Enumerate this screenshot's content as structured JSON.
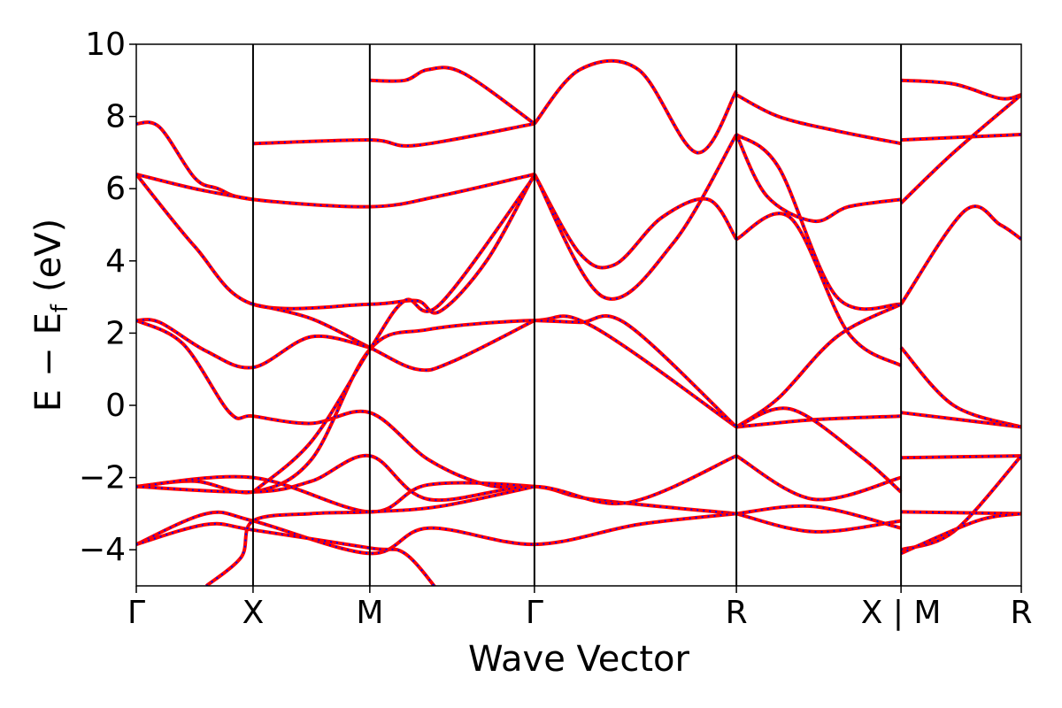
{
  "chart_data": {
    "type": "line",
    "title": "",
    "xlabel": "Wave Vector",
    "ylabel": "E − E_f (eV)",
    "ylabel_parts": {
      "lhs": "E",
      "minus": "−",
      "ef_base": "E",
      "ef_sub": "f",
      "unit": "(eV)"
    },
    "ylim": [
      -5,
      10
    ],
    "xlim": [
      0,
      7.58
    ],
    "yticks": [
      -4,
      -2,
      0,
      2,
      4,
      6,
      8,
      10
    ],
    "ytick_labels": [
      "−4",
      "−2",
      "0",
      "2",
      "4",
      "6",
      "8",
      "10"
    ],
    "kpoints": [
      {
        "label": "Γ",
        "x": 0
      },
      {
        "label": "X",
        "x": 1
      },
      {
        "label": "M",
        "x": 2
      },
      {
        "label": "Γ",
        "x": 3.41
      },
      {
        "label": "R",
        "x": 5.14
      },
      {
        "label": "X | M",
        "x": 6.55
      },
      {
        "label": "R",
        "x": 7.58
      }
    ],
    "vlines": [
      1,
      2,
      3.41,
      5.14,
      6.55
    ],
    "grid": false,
    "legend": "none",
    "colors": {
      "series_a": "#ff0000",
      "series_b": "#0000ff",
      "vline": "#000000"
    },
    "series": [
      {
        "style": "solid",
        "color": "#ff0000",
        "bands": [
          [
            [
              0,
              7.8
            ],
            [
              0.2,
              7.7
            ],
            [
              0.5,
              6.3
            ],
            [
              0.7,
              6.0
            ],
            [
              1,
              5.7
            ],
            [
              2,
              5.5
            ],
            [
              2.6,
              5.8
            ],
            [
              3.41,
              6.4
            ]
          ],
          [
            [
              0,
              6.4
            ],
            [
              0.5,
              6.0
            ],
            [
              1,
              5.7
            ]
          ],
          [
            [
              0,
              6.4
            ],
            [
              0.5,
              4.4
            ],
            [
              1,
              2.8
            ],
            [
              2,
              2.8
            ],
            [
              2.4,
              2.9
            ],
            [
              2.6,
              2.6
            ],
            [
              3.0,
              4.0
            ],
            [
              3.41,
              6.4
            ]
          ],
          [
            [
              1,
              2.8
            ],
            [
              1.5,
              2.4
            ],
            [
              2,
              1.6
            ],
            [
              2.4,
              1.0
            ],
            [
              2.7,
              1.2
            ],
            [
              3.41,
              2.35
            ]
          ],
          [
            [
              0,
              2.35
            ],
            [
              0.2,
              2.3
            ],
            [
              0.6,
              1.5
            ],
            [
              1,
              1.05
            ],
            [
              1.5,
              1.9
            ],
            [
              2,
              1.6
            ]
          ],
          [
            [
              0,
              2.35
            ],
            [
              0.4,
              1.7
            ],
            [
              0.8,
              -0.2
            ],
            [
              1,
              -0.3
            ],
            [
              1.5,
              -0.5
            ],
            [
              2,
              -0.2
            ],
            [
              2.5,
              -1.5
            ],
            [
              3.0,
              -2.2
            ],
            [
              3.41,
              -2.25
            ]
          ],
          [
            [
              0,
              -2.25
            ],
            [
              0.5,
              -2.1
            ],
            [
              1,
              -2.4
            ],
            [
              1.5,
              -1.5
            ],
            [
              2,
              1.55
            ],
            [
              2.5,
              2.1
            ],
            [
              3.41,
              2.35
            ],
            [
              3.9,
              2.2
            ],
            [
              5.14,
              -0.6
            ]
          ],
          [
            [
              3.41,
              2.35
            ],
            [
              3.8,
              2.3
            ],
            [
              4.2,
              2.25
            ],
            [
              5.14,
              -0.6
            ]
          ],
          [
            [
              0,
              -2.25
            ],
            [
              1,
              -2.0
            ],
            [
              2,
              -2.95
            ],
            [
              2.5,
              -2.2
            ],
            [
              3.41,
              -2.25
            ],
            [
              3.9,
              -2.6
            ],
            [
              5.14,
              -3.0
            ]
          ],
          [
            [
              0,
              -3.85
            ],
            [
              0.6,
              -3.0
            ],
            [
              1,
              -3.2
            ],
            [
              2,
              -4.1
            ],
            [
              2.5,
              -3.4
            ],
            [
              3.41,
              -3.85
            ],
            [
              4.3,
              -3.3
            ],
            [
              5.14,
              -3.0
            ]
          ],
          [
            [
              0,
              -3.85
            ],
            [
              0.6,
              -3.3
            ],
            [
              1,
              -3.45
            ],
            [
              2,
              -3.95
            ],
            [
              2.3,
              -4.1
            ],
            [
              2.6,
              -5.2
            ]
          ],
          [
            [
              0,
              -2.25
            ],
            [
              1,
              -2.4
            ],
            [
              1.5,
              -2.1
            ],
            [
              2,
              -1.4
            ],
            [
              2.5,
              -2.6
            ],
            [
              3.41,
              -2.25
            ],
            [
              4.2,
              -2.7
            ],
            [
              5.14,
              -1.4
            ]
          ],
          [
            [
              0.6,
              -5.0
            ],
            [
              0.9,
              -4.2
            ],
            [
              1,
              -3.2
            ],
            [
              1.5,
              -3.0
            ],
            [
              2,
              -2.95
            ],
            [
              2.6,
              -2.8
            ],
            [
              3.41,
              -2.25
            ]
          ],
          [
            [
              1,
              -2.4
            ],
            [
              1.5,
              -1.0
            ],
            [
              2,
              1.55
            ],
            [
              2.3,
              2.9
            ],
            [
              2.6,
              2.8
            ],
            [
              3.41,
              6.35
            ]
          ],
          [
            [
              2,
              9.0
            ],
            [
              2.3,
              9.0
            ],
            [
              2.5,
              9.3
            ],
            [
              2.8,
              9.2
            ],
            [
              3.41,
              7.8
            ]
          ],
          [
            [
              3.41,
              7.8
            ],
            [
              3.8,
              9.3
            ],
            [
              4.3,
              9.3
            ],
            [
              4.8,
              7.0
            ],
            [
              5.14,
              8.7
            ]
          ],
          [
            [
              3.41,
              6.4
            ],
            [
              3.8,
              4.2
            ],
            [
              4.1,
              3.9
            ],
            [
              4.5,
              5.2
            ],
            [
              4.9,
              5.7
            ],
            [
              5.14,
              4.6
            ]
          ],
          [
            [
              3.41,
              6.4
            ],
            [
              4.0,
              3.0
            ],
            [
              4.6,
              4.5
            ],
            [
              5.14,
              7.5
            ]
          ],
          [
            [
              5.14,
              7.5
            ],
            [
              5.4,
              5.8
            ],
            [
              5.8,
              5.1
            ],
            [
              6.1,
              5.5
            ],
            [
              6.55,
              5.7
            ]
          ],
          [
            [
              5.14,
              7.5
            ],
            [
              5.5,
              6.6
            ],
            [
              6.0,
              3.0
            ],
            [
              6.55,
              2.8
            ]
          ],
          [
            [
              5.14,
              4.6
            ],
            [
              5.6,
              5.2
            ],
            [
              6.1,
              2.0
            ],
            [
              6.55,
              1.1
            ]
          ],
          [
            [
              5.14,
              -0.6
            ],
            [
              5.5,
              0.2
            ],
            [
              6.0,
              1.9
            ],
            [
              6.55,
              2.8
            ]
          ],
          [
            [
              5.14,
              -0.6
            ],
            [
              5.8,
              -0.4
            ],
            [
              6.55,
              -0.3
            ]
          ],
          [
            [
              5.14,
              -0.6
            ],
            [
              5.6,
              -0.1
            ],
            [
              6.2,
              -1.4
            ],
            [
              6.55,
              -2.4
            ]
          ],
          [
            [
              5.14,
              -1.4
            ],
            [
              5.8,
              -2.6
            ],
            [
              6.55,
              -2.0
            ]
          ],
          [
            [
              5.14,
              -3.0
            ],
            [
              5.8,
              -3.5
            ],
            [
              6.55,
              -3.2
            ]
          ],
          [
            [
              5.14,
              -3.0
            ],
            [
              5.8,
              -2.8
            ],
            [
              6.55,
              -3.4
            ]
          ],
          [
            [
              5.14,
              8.6
            ],
            [
              5.5,
              8.0
            ],
            [
              6.0,
              7.6
            ],
            [
              6.55,
              7.25
            ]
          ],
          [
            [
              1,
              7.25
            ],
            [
              2,
              7.35
            ],
            [
              2.4,
              7.2
            ],
            [
              3.41,
              7.8
            ]
          ],
          [
            [
              6.55,
              9.0
            ],
            [
              7.0,
              8.9
            ],
            [
              7.4,
              8.5
            ],
            [
              7.58,
              8.6
            ]
          ],
          [
            [
              6.55,
              7.35
            ],
            [
              7.58,
              7.5
            ]
          ],
          [
            [
              6.55,
              5.6
            ],
            [
              7.0,
              7.0
            ],
            [
              7.58,
              8.6
            ]
          ],
          [
            [
              6.55,
              2.8
            ],
            [
              7.1,
              5.4
            ],
            [
              7.4,
              5.0
            ],
            [
              7.58,
              4.6
            ]
          ],
          [
            [
              6.55,
              1.6
            ],
            [
              7.0,
              0.0
            ],
            [
              7.58,
              -0.6
            ]
          ],
          [
            [
              6.55,
              -0.2
            ],
            [
              7.58,
              -0.6
            ]
          ],
          [
            [
              6.55,
              -1.45
            ],
            [
              7.58,
              -1.4
            ]
          ],
          [
            [
              6.55,
              -2.95
            ],
            [
              7.58,
              -3.0
            ]
          ],
          [
            [
              6.55,
              -4.0
            ],
            [
              7.0,
              -3.5
            ],
            [
              7.58,
              -1.4
            ]
          ],
          [
            [
              6.55,
              -4.1
            ],
            [
              7.2,
              -3.2
            ],
            [
              7.58,
              -3.0
            ]
          ]
        ]
      }
    ]
  }
}
